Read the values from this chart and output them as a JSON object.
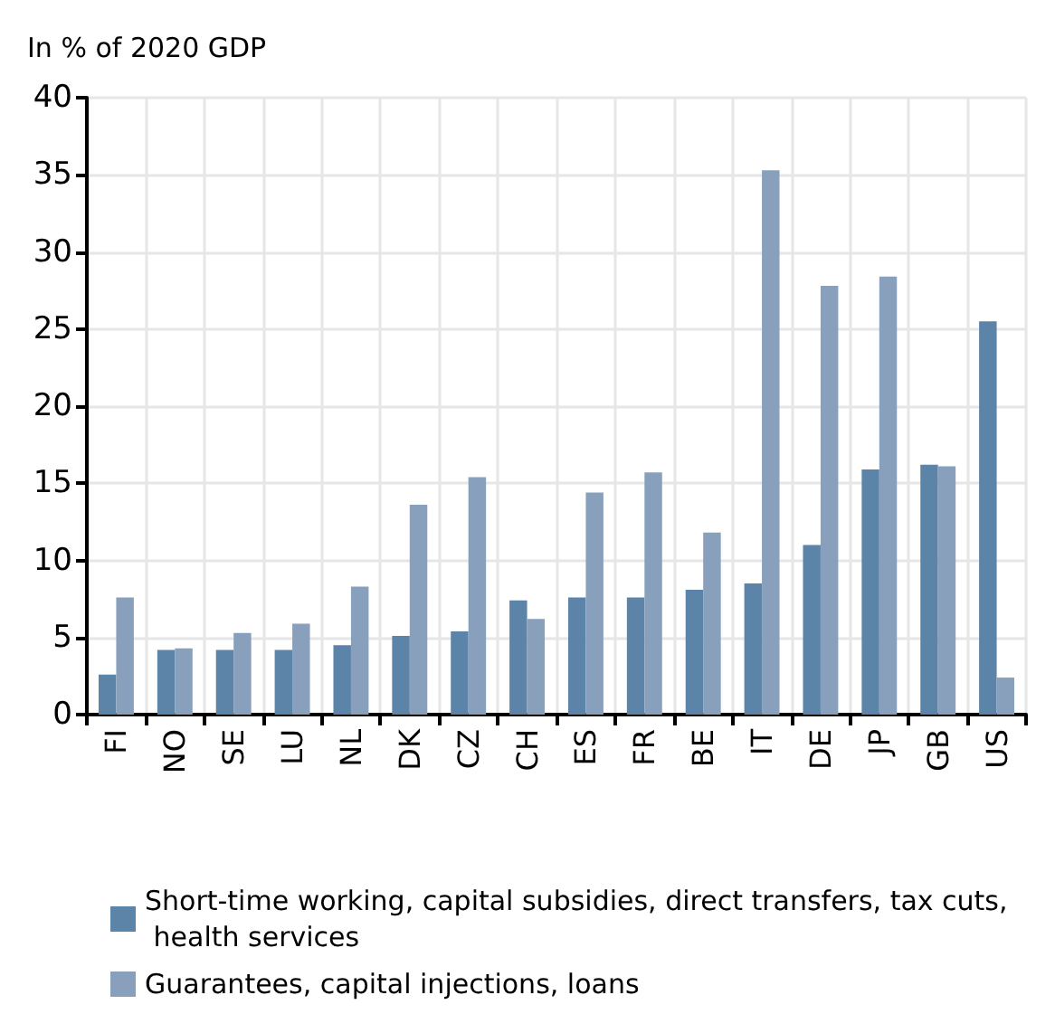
{
  "chart_data": {
    "type": "bar",
    "ylabel": "In % of 2020 GDP",
    "categories": [
      "FI",
      "NO",
      "SE",
      "LU",
      "NL",
      "DK",
      "CZ",
      "CH",
      "ES",
      "FR",
      "BE",
      "IT",
      "DE",
      "JP",
      "GB",
      "US"
    ],
    "series": [
      {
        "name": "Short-time working, capital subsidies, direct transfers, tax cuts, health services",
        "color": "#5b84a8",
        "values": [
          2.6,
          4.2,
          4.2,
          4.2,
          4.5,
          5.1,
          5.4,
          7.4,
          7.6,
          7.6,
          8.1,
          8.5,
          11.0,
          15.9,
          16.2,
          25.5
        ]
      },
      {
        "name": "Guarantees, capital injections, loans",
        "color": "#88a0bb",
        "values": [
          7.6,
          4.3,
          5.3,
          5.9,
          8.3,
          13.6,
          15.4,
          6.2,
          14.4,
          15.7,
          11.8,
          35.3,
          27.8,
          28.4,
          16.1,
          2.4
        ]
      }
    ],
    "ylim": [
      0,
      40
    ],
    "yticks": [
      0,
      5,
      10,
      15,
      20,
      25,
      30,
      35,
      40
    ],
    "grid": true,
    "legend": "bottom left"
  }
}
